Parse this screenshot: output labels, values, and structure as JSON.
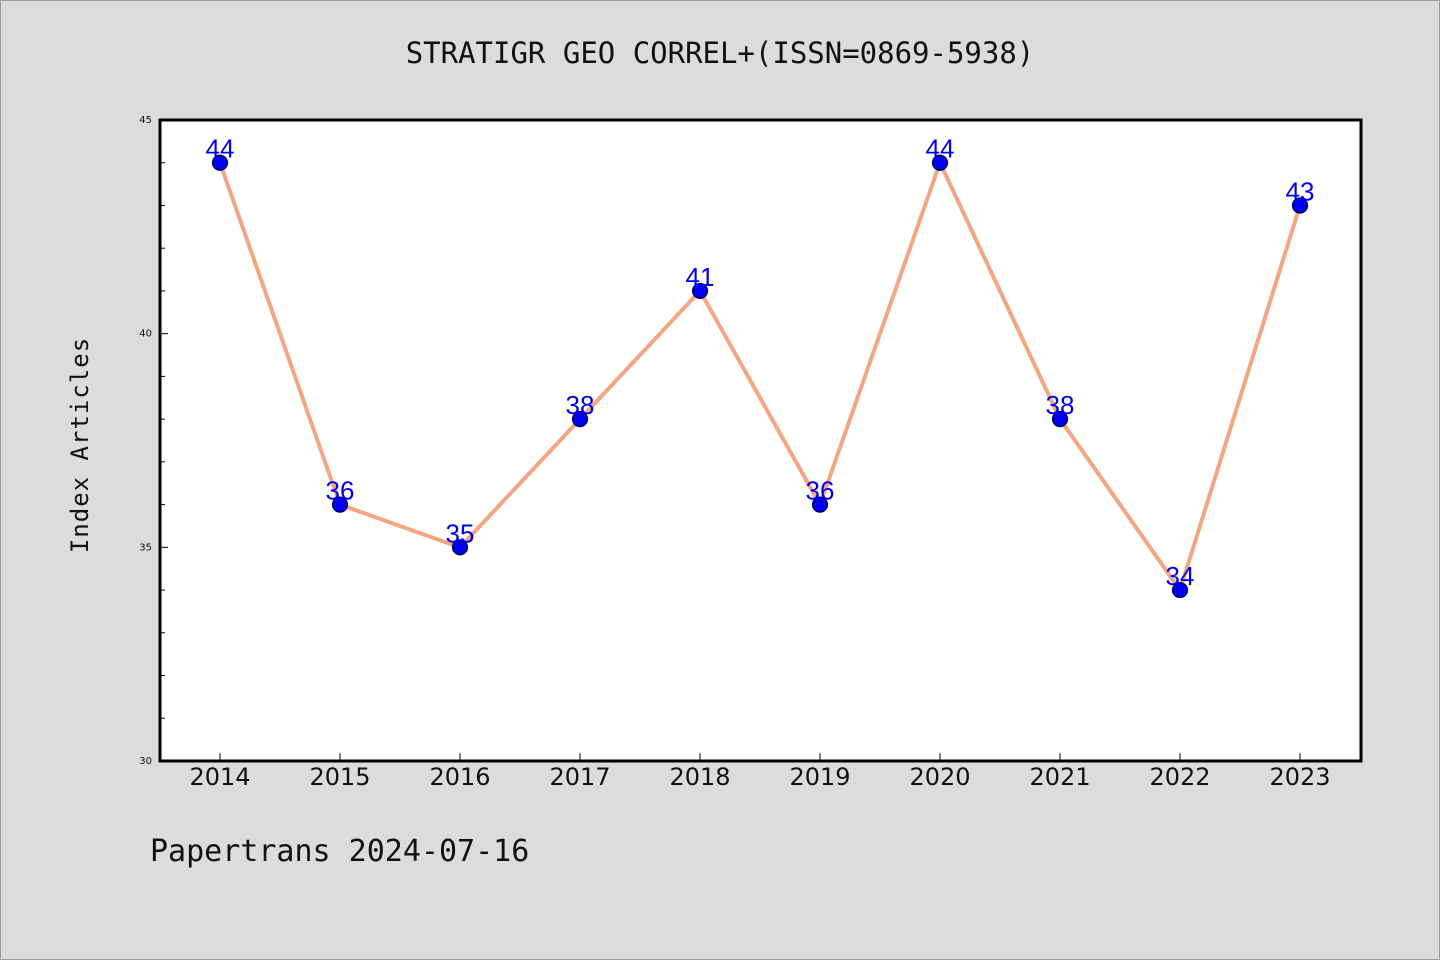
{
  "page": {
    "title": "STRATIGR GEO CORREL+(ISSN=0869-5938)",
    "footer": "Papertrans 2024-07-16"
  },
  "chart_data": {
    "type": "line",
    "title": "STRATIGR GEO CORREL+(ISSN=0869-5938)",
    "xlabel": "",
    "ylabel": "Index Articles",
    "categories": [
      "2014",
      "2015",
      "2016",
      "2017",
      "2018",
      "2019",
      "2020",
      "2021",
      "2022",
      "2023"
    ],
    "series": [
      {
        "values": [
          44,
          36,
          35,
          38,
          41,
          36,
          44,
          38,
          34,
          43
        ]
      }
    ],
    "ylim": [
      30,
      45
    ],
    "yticks": [
      30,
      35,
      40,
      45
    ],
    "data_labels": true,
    "grid": false,
    "colors": {
      "line": "#f4a582",
      "marker": "#0000ee",
      "label": "#0000ee",
      "background": "#dcdcdc",
      "plot_background": "#ffffff"
    }
  }
}
